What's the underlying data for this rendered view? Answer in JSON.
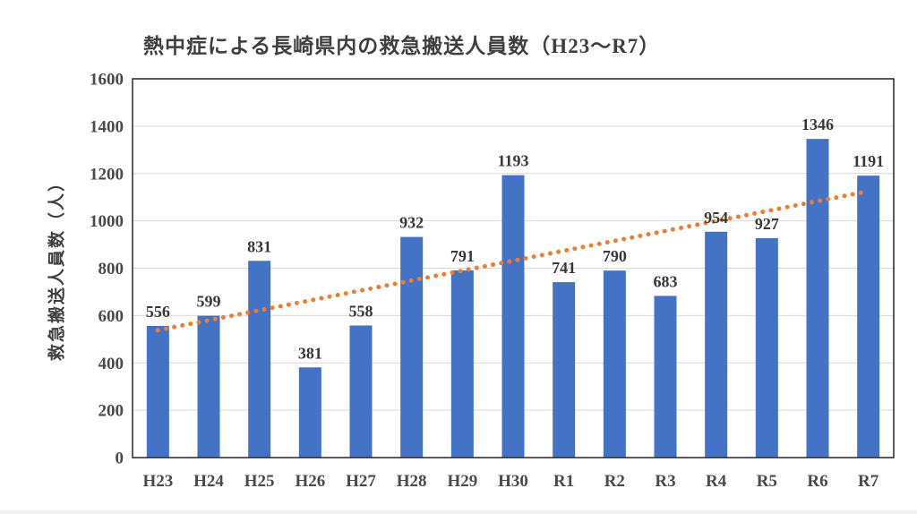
{
  "chart_data": {
    "type": "bar",
    "title": "熱中症による長崎県内の救急搬送人員数（H23～R7）",
    "ylabel": "救急搬送人員数（人）",
    "xlabel": "",
    "categories": [
      "H23",
      "H24",
      "H25",
      "H26",
      "H27",
      "H28",
      "H29",
      "H30",
      "R1",
      "R2",
      "R3",
      "R4",
      "R5",
      "R6",
      "R7"
    ],
    "values": [
      556,
      599,
      831,
      381,
      558,
      932,
      791,
      1193,
      741,
      790,
      683,
      954,
      927,
      1346,
      1191
    ],
    "ylim": [
      0,
      1600
    ],
    "ytick_step": 200,
    "yticks": [
      0,
      200,
      400,
      600,
      800,
      1000,
      1200,
      1400,
      1600
    ],
    "grid": "horizontal",
    "legend": "none",
    "data_labels": true,
    "bar_color": "#4472C4",
    "trendline": {
      "type": "linear",
      "style": "dotted",
      "color": "#ED7D31"
    },
    "plot_border_color": "#262626",
    "gridline_color": "#d9d9d9"
  }
}
